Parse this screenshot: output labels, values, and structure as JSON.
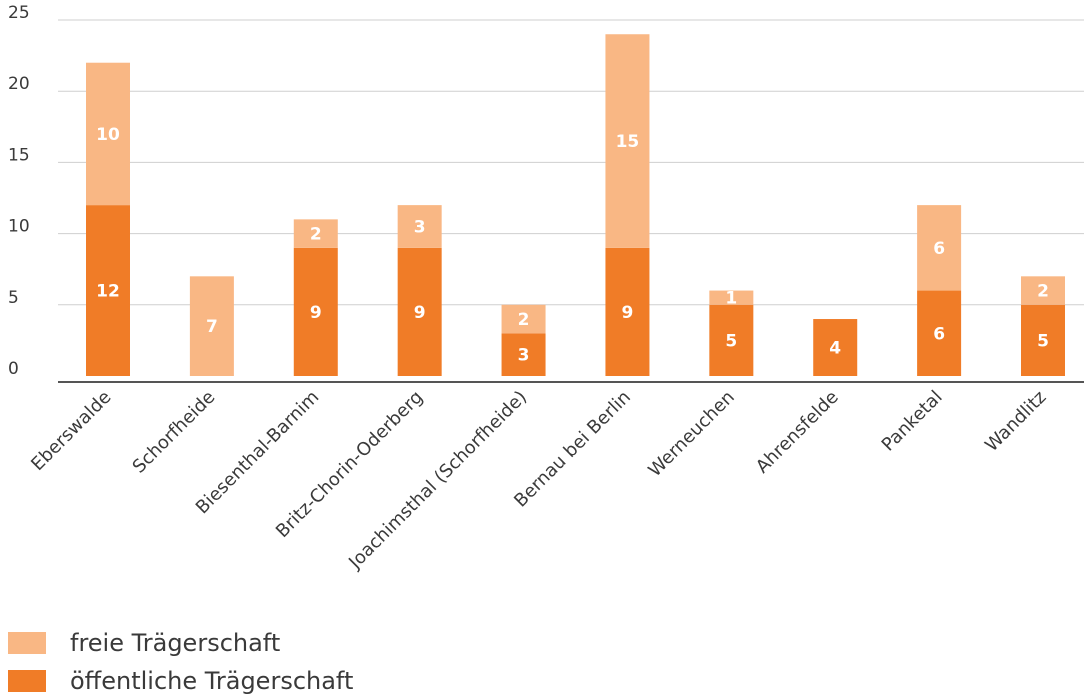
{
  "chart_data": {
    "type": "bar",
    "stacked": true,
    "categories": [
      "Eberswalde",
      "Schorfheide",
      "Biesenthal-Barnim",
      "Britz-Chorin-Oderberg",
      "Joachimsthal (Schorfheide)",
      "Bernau bei Berlin",
      "Werneuchen",
      "Ahrensfelde",
      "Panketal",
      "Wandlitz"
    ],
    "series": [
      {
        "name": "öffentliche Trägerschaft",
        "color": "#f07c27",
        "values": [
          12,
          0,
          9,
          9,
          3,
          9,
          5,
          4,
          6,
          5
        ]
      },
      {
        "name": "freie Trägerschaft",
        "color": "#f9b784",
        "values": [
          10,
          7,
          2,
          3,
          2,
          15,
          1,
          0,
          6,
          2
        ]
      }
    ],
    "yticks": [
      0,
      5,
      10,
      15,
      20,
      25
    ],
    "ylim": [
      0,
      25
    ],
    "grid": true,
    "legend_position": "bottom-left",
    "title": "",
    "xlabel": "",
    "ylabel": ""
  },
  "legend": {
    "items": [
      {
        "label": "freie Trägerschaft",
        "color": "#f9b784"
      },
      {
        "label": "öffentliche Trägerschaft",
        "color": "#f07c27"
      }
    ]
  }
}
